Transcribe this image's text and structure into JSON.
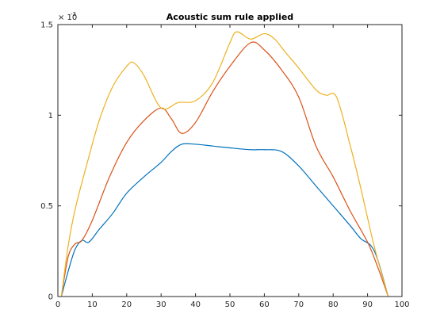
{
  "chart_data": {
    "type": "line",
    "title": "Acoustic sum rule applied",
    "xlabel": "",
    "ylabel": "",
    "xlim": [
      0,
      100
    ],
    "ylim": [
      0,
      0.0015
    ],
    "x_ticks": [
      "0",
      "10",
      "20",
      "30",
      "40",
      "50",
      "60",
      "70",
      "80",
      "90",
      "100"
    ],
    "y_ticks": [
      "0",
      "0.5",
      "1",
      "1.5"
    ],
    "y_exponent_base": "× 10",
    "y_exponent_power": "-3",
    "grid": false,
    "legend": "none",
    "series": [
      {
        "color": "#0072BD",
        "x": [
          1,
          3,
          5,
          7,
          9,
          12,
          16,
          20,
          25,
          30,
          33,
          36,
          40,
          45,
          50,
          56,
          60,
          65,
          70,
          75,
          80,
          85,
          88,
          91,
          93,
          96
        ],
        "y": [
          0.0,
          0.00014,
          0.00026,
          0.00031,
          0.0003,
          0.00037,
          0.00046,
          0.00057,
          0.00066,
          0.00074,
          0.0008,
          0.00084,
          0.00084,
          0.00083,
          0.00082,
          0.00081,
          0.00081,
          0.0008,
          0.00072,
          0.00061,
          0.0005,
          0.00039,
          0.00032,
          0.00028,
          0.0002,
          0.0
        ]
      },
      {
        "color": "#D95319",
        "x": [
          1,
          3,
          5,
          7,
          10,
          15,
          20,
          25,
          30,
          33,
          36,
          40,
          45,
          50,
          56,
          60,
          65,
          70,
          75,
          80,
          85,
          90,
          93,
          96
        ],
        "y": [
          0.0,
          0.00022,
          0.00029,
          0.00031,
          0.00042,
          0.00066,
          0.00085,
          0.00097,
          0.00104,
          0.00098,
          0.0009,
          0.00096,
          0.00113,
          0.00127,
          0.0014,
          0.00136,
          0.00125,
          0.0011,
          0.00083,
          0.00066,
          0.00047,
          0.0003,
          0.00016,
          0.0
        ]
      },
      {
        "color": "#EDB120",
        "x": [
          1,
          3,
          5,
          8,
          12,
          16,
          20,
          22,
          25,
          30,
          35,
          40,
          45,
          50,
          52,
          56,
          60,
          63,
          66,
          70,
          75,
          78,
          81,
          85,
          88,
          91,
          93,
          96
        ],
        "y": [
          0.0,
          0.00028,
          0.00048,
          0.0007,
          0.00097,
          0.00116,
          0.00127,
          0.00129,
          0.00122,
          0.00104,
          0.00107,
          0.00108,
          0.00118,
          0.0014,
          0.00146,
          0.00142,
          0.00145,
          0.00142,
          0.00135,
          0.00126,
          0.00114,
          0.00111,
          0.0011,
          0.00083,
          0.0006,
          0.00035,
          0.0002,
          0.0
        ]
      }
    ]
  }
}
